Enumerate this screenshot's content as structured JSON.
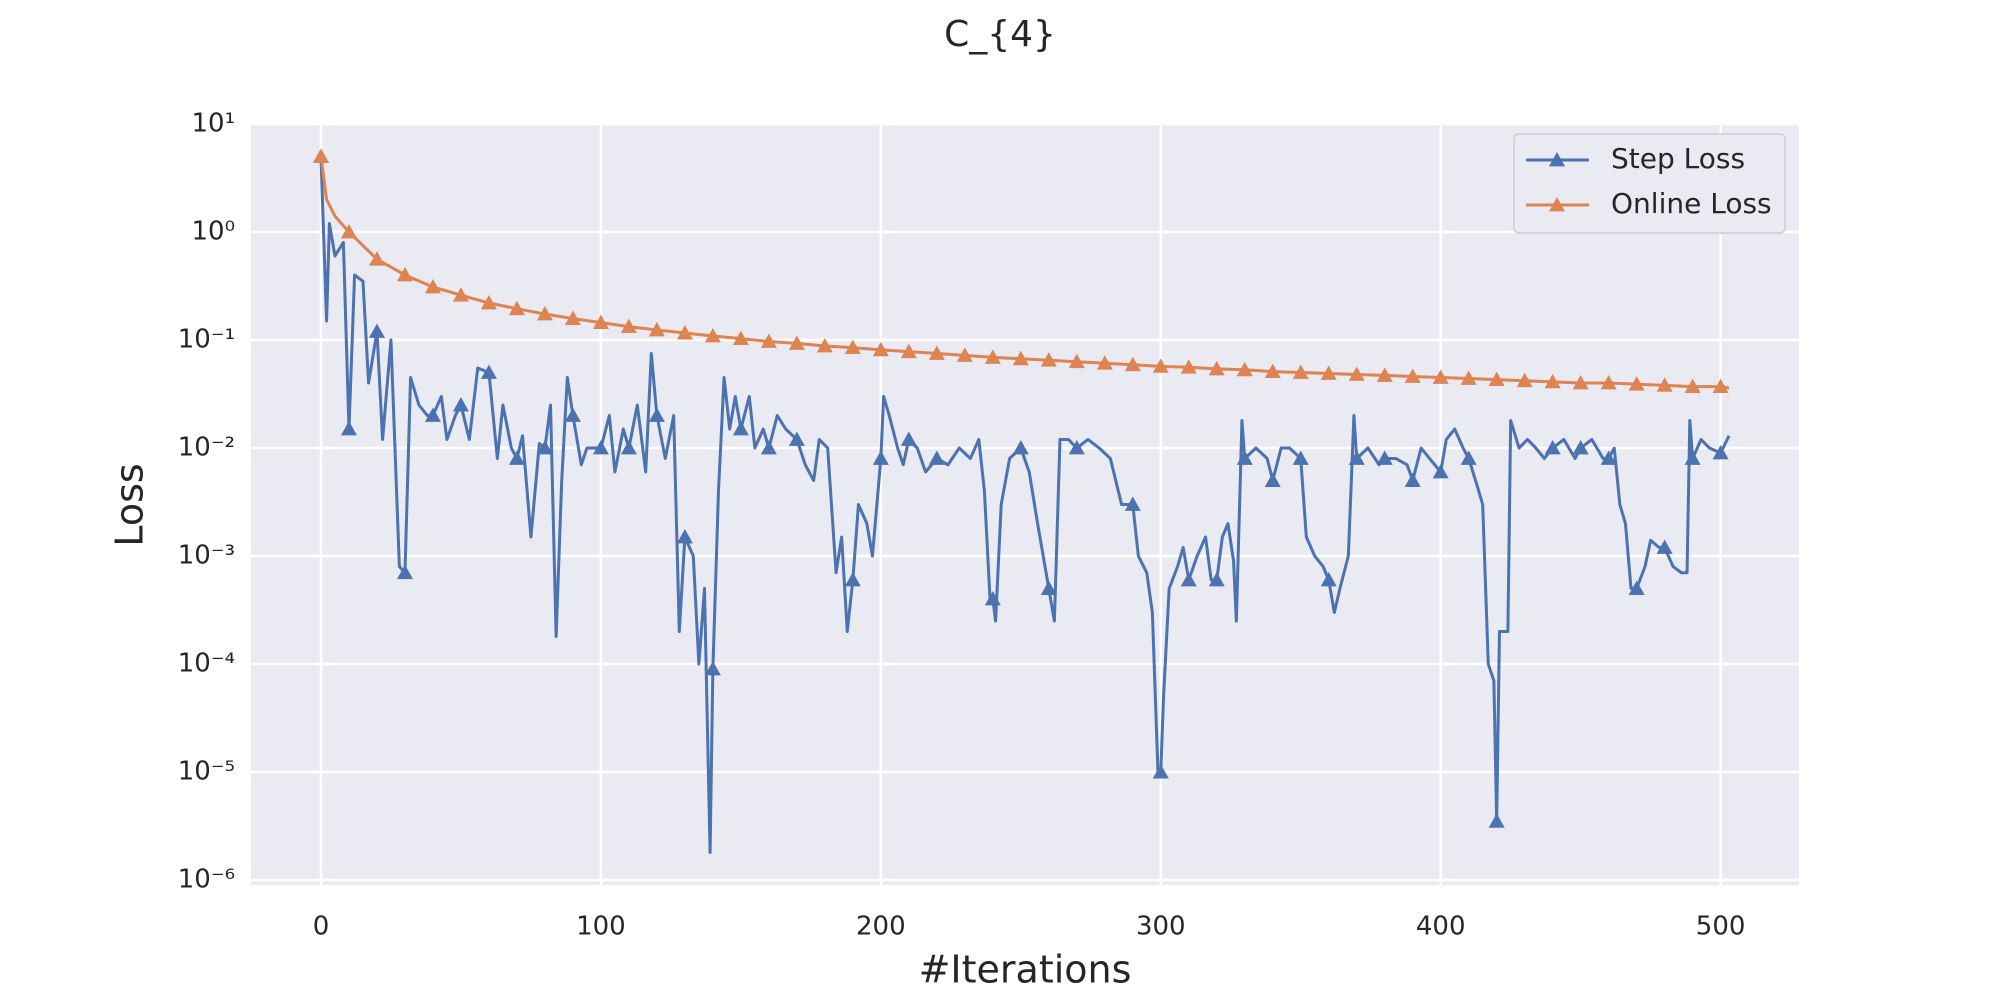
{
  "chart_data": {
    "type": "line",
    "title": "C_{4}",
    "x_label": "#Iterations",
    "y_label": "Loss",
    "y_scale": "log",
    "grid": true,
    "legend_position": "upper right",
    "xlim": [
      -25,
      528
    ],
    "xticks": [
      0,
      100,
      200,
      300,
      400,
      500
    ],
    "ylim": [
      9e-07,
      10
    ],
    "yticks": [
      {
        "value": 1e-06,
        "label": "10⁻⁶"
      },
      {
        "value": 1e-05,
        "label": "10⁻⁵"
      },
      {
        "value": 0.0001,
        "label": "10⁻⁴"
      },
      {
        "value": 0.001,
        "label": "10⁻³"
      },
      {
        "value": 0.01,
        "label": "10⁻²"
      },
      {
        "value": 0.1,
        "label": "10⁻¹"
      },
      {
        "value": 1,
        "label": "10⁰"
      },
      {
        "value": 10,
        "label": "10¹"
      }
    ],
    "series": [
      {
        "name": "Step Loss",
        "color": "#4c72b0",
        "x": [
          0,
          2,
          3,
          5,
          8,
          10,
          12,
          15,
          17,
          20,
          22,
          25,
          28,
          30,
          32,
          35,
          38,
          40,
          43,
          45,
          48,
          50,
          53,
          56,
          60,
          63,
          65,
          68,
          70,
          72,
          75,
          78,
          80,
          82,
          84,
          86,
          88,
          90,
          93,
          95,
          100,
          103,
          105,
          108,
          110,
          113,
          116,
          118,
          120,
          123,
          126,
          128,
          130,
          133,
          135,
          137,
          139,
          140,
          142,
          144,
          146,
          148,
          150,
          153,
          155,
          158,
          160,
          163,
          166,
          170,
          173,
          176,
          178,
          181,
          184,
          186,
          188,
          190,
          192,
          195,
          197,
          200,
          201,
          203,
          206,
          208,
          210,
          213,
          216,
          220,
          224,
          228,
          232,
          235,
          237,
          239,
          240,
          241,
          243,
          246,
          250,
          253,
          256,
          258,
          260,
          262,
          264,
          267,
          270,
          274,
          278,
          282,
          286,
          290,
          292,
          295,
          297,
          299,
          300,
          301,
          303,
          306,
          308,
          310,
          313,
          316,
          318,
          320,
          322,
          324,
          326,
          327,
          329,
          330,
          334,
          338,
          340,
          343,
          346,
          350,
          352,
          355,
          358,
          360,
          362,
          364,
          367,
          369,
          370,
          374,
          378,
          380,
          384,
          388,
          390,
          393,
          396,
          400,
          402,
          405,
          408,
          410,
          413,
          415,
          417,
          419,
          420,
          421,
          422,
          424,
          425,
          428,
          431,
          434,
          437,
          440,
          444,
          448,
          450,
          454,
          458,
          460,
          462,
          464,
          466,
          468,
          470,
          473,
          475,
          478,
          480,
          483,
          486,
          488,
          489,
          490,
          493,
          496,
          500,
          503
        ],
        "values": [
          5,
          0.15,
          1.2,
          0.6,
          0.8,
          0.015,
          0.4,
          0.35,
          0.04,
          0.12,
          0.012,
          0.1,
          0.0008,
          0.0007,
          0.045,
          0.025,
          0.02,
          0.02,
          0.03,
          0.012,
          0.02,
          0.025,
          0.012,
          0.055,
          0.05,
          0.008,
          0.025,
          0.01,
          0.008,
          0.013,
          0.0015,
          0.011,
          0.01,
          0.025,
          0.00018,
          0.005,
          0.045,
          0.02,
          0.007,
          0.01,
          0.01,
          0.02,
          0.006,
          0.015,
          0.01,
          0.025,
          0.006,
          0.075,
          0.02,
          0.008,
          0.02,
          0.0002,
          0.0015,
          0.001,
          0.0001,
          0.0005,
          1.8e-06,
          9e-05,
          0.004,
          0.045,
          0.015,
          0.03,
          0.015,
          0.03,
          0.01,
          0.015,
          0.01,
          0.02,
          0.015,
          0.012,
          0.007,
          0.005,
          0.012,
          0.01,
          0.0007,
          0.0015,
          0.0002,
          0.0006,
          0.003,
          0.002,
          0.001,
          0.008,
          0.03,
          0.02,
          0.01,
          0.007,
          0.012,
          0.01,
          0.006,
          0.008,
          0.007,
          0.01,
          0.008,
          0.012,
          0.004,
          0.0004,
          0.0004,
          0.00025,
          0.003,
          0.008,
          0.01,
          0.006,
          0.002,
          0.001,
          0.0005,
          0.00025,
          0.012,
          0.012,
          0.01,
          0.012,
          0.01,
          0.008,
          0.003,
          0.003,
          0.001,
          0.0007,
          0.0003,
          1e-05,
          1e-05,
          5e-05,
          0.0005,
          0.0008,
          0.0012,
          0.0006,
          0.001,
          0.0015,
          0.0006,
          0.0006,
          0.0015,
          0.002,
          0.0009,
          0.00025,
          0.018,
          0.008,
          0.01,
          0.008,
          0.005,
          0.01,
          0.01,
          0.008,
          0.0015,
          0.001,
          0.0008,
          0.0006,
          0.0003,
          0.0005,
          0.001,
          0.02,
          0.008,
          0.01,
          0.007,
          0.008,
          0.008,
          0.007,
          0.005,
          0.01,
          0.008,
          0.006,
          0.012,
          0.015,
          0.01,
          0.008,
          0.0045,
          0.003,
          0.0001,
          7e-05,
          3.5e-06,
          0.0002,
          0.0002,
          0.0002,
          0.018,
          0.01,
          0.012,
          0.01,
          0.008,
          0.01,
          0.012,
          0.008,
          0.01,
          0.012,
          0.008,
          0.008,
          0.01,
          0.003,
          0.002,
          0.0005,
          0.0005,
          0.0008,
          0.0014,
          0.0012,
          0.0012,
          0.0008,
          0.0007,
          0.0007,
          0.018,
          0.008,
          0.012,
          0.01,
          0.009,
          0.013
        ]
      },
      {
        "name": "Online Loss",
        "color": "#dd8452",
        "x": [
          0,
          2,
          5,
          10,
          20,
          30,
          40,
          50,
          60,
          70,
          80,
          90,
          100,
          110,
          120,
          130,
          140,
          150,
          160,
          170,
          180,
          190,
          200,
          210,
          220,
          230,
          240,
          250,
          260,
          270,
          280,
          290,
          300,
          310,
          320,
          330,
          340,
          350,
          360,
          370,
          380,
          390,
          400,
          410,
          420,
          430,
          440,
          450,
          460,
          470,
          480,
          490,
          500,
          503
        ],
        "values": [
          5,
          2.0,
          1.4,
          1.0,
          0.56,
          0.4,
          0.31,
          0.26,
          0.22,
          0.195,
          0.174,
          0.158,
          0.145,
          0.133,
          0.124,
          0.116,
          0.109,
          0.103,
          0.097,
          0.093,
          0.088,
          0.085,
          0.081,
          0.078,
          0.075,
          0.072,
          0.069,
          0.067,
          0.065,
          0.063,
          0.061,
          0.059,
          0.057,
          0.056,
          0.054,
          0.053,
          0.051,
          0.05,
          0.049,
          0.048,
          0.047,
          0.046,
          0.045,
          0.044,
          0.043,
          0.042,
          0.041,
          0.04,
          0.04,
          0.039,
          0.038,
          0.037,
          0.037,
          0.036
        ]
      }
    ]
  }
}
